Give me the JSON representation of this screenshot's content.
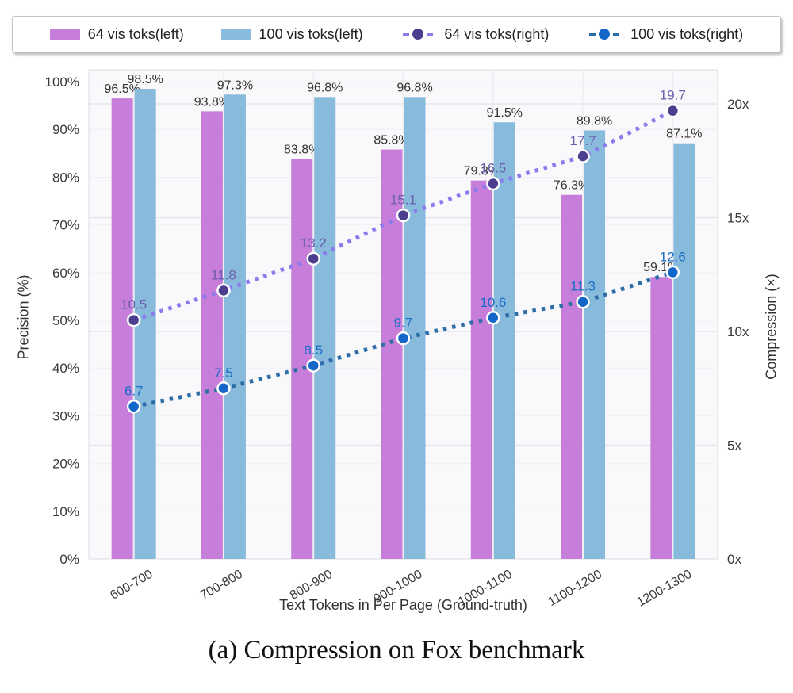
{
  "legend": {
    "items": [
      {
        "label": "64 vis toks(left)",
        "marker": "bar",
        "color": "#c77edb"
      },
      {
        "label": "100 vis toks(left)",
        "marker": "bar",
        "color": "#87badb"
      },
      {
        "label": "64 vis toks(right)",
        "marker": "line",
        "line_color": "#8a7cec",
        "dot_color": "#4d3d8f"
      },
      {
        "label": "100 vis toks(right)",
        "marker": "line",
        "line_color": "#2d6da8",
        "dot_color": "#1467c8"
      }
    ]
  },
  "chart_data": {
    "type": "bar+line",
    "categories": [
      "600-700",
      "700-800",
      "800-900",
      "900-1000",
      "1000-1100",
      "1100-1200",
      "1200-1300"
    ],
    "bar_series": [
      {
        "name": "64 vis toks(left)",
        "axis": "left",
        "color": "#c77edb",
        "values": [
          96.5,
          93.8,
          83.8,
          85.8,
          79.3,
          76.3,
          59.1
        ],
        "labels": [
          "96.5%",
          "93.8%",
          "83.8%",
          "85.8%",
          "79.3%",
          "76.3%",
          "59.1%"
        ]
      },
      {
        "name": "100 vis toks(left)",
        "axis": "left",
        "color": "#87badb",
        "values": [
          98.5,
          97.3,
          96.8,
          96.8,
          91.5,
          89.8,
          87.1
        ],
        "labels": [
          "98.5%",
          "97.3%",
          "96.8%",
          "96.8%",
          "91.5%",
          "89.8%",
          "87.1%"
        ]
      }
    ],
    "line_series": [
      {
        "name": "64 vis toks(right)",
        "axis": "right",
        "line_color": "#8a7cec",
        "dot_color": "#4d3d8f",
        "label_color": "#6b5fae",
        "values": [
          10.5,
          11.8,
          13.2,
          15.1,
          16.5,
          17.7,
          19.7
        ],
        "labels": [
          "10.5",
          "11.8",
          "13.2",
          "15.1",
          "16.5",
          "17.7",
          "19.7"
        ]
      },
      {
        "name": "100 vis toks(right)",
        "axis": "right",
        "line_color": "#2d6da8",
        "dot_color": "#1467c8",
        "label_color": "#1a6ec8",
        "values": [
          6.7,
          7.5,
          8.5,
          9.7,
          10.6,
          11.3,
          12.6
        ],
        "labels": [
          "6.7",
          "7.5",
          "8.5",
          "9.7",
          "10.6",
          "11.3",
          "12.6"
        ]
      }
    ],
    "xlabel": "Text Tokens in Per Page (Ground-truth)",
    "left_axis": {
      "title": "Precision (%)",
      "max_display": 102.5,
      "ticks": [
        {
          "v": 0,
          "label": "0%"
        },
        {
          "v": 10,
          "label": "10%"
        },
        {
          "v": 20,
          "label": "20%"
        },
        {
          "v": 30,
          "label": "30%"
        },
        {
          "v": 40,
          "label": "40%"
        },
        {
          "v": 50,
          "label": "50%"
        },
        {
          "v": 60,
          "label": "60%"
        },
        {
          "v": 70,
          "label": "70%"
        },
        {
          "v": 80,
          "label": "80%"
        },
        {
          "v": 90,
          "label": "90%"
        },
        {
          "v": 100,
          "label": "100%"
        }
      ]
    },
    "right_axis": {
      "title": "Compression (×)",
      "max_display": 21.5,
      "ticks": [
        {
          "v": 0,
          "label": "0x"
        },
        {
          "v": 5,
          "label": "5x"
        },
        {
          "v": 10,
          "label": "10x"
        },
        {
          "v": 15,
          "label": "15x"
        },
        {
          "v": 20,
          "label": "20x"
        }
      ]
    },
    "grid": {
      "major_color": "#e4e4e9",
      "minor_color": "#f0f0f4",
      "vertical_color": "#ededf1",
      "plot_bg": "#f9f9fb",
      "plot_border": "#dcdce0"
    }
  },
  "caption": "(a) Compression on Fox benchmark"
}
